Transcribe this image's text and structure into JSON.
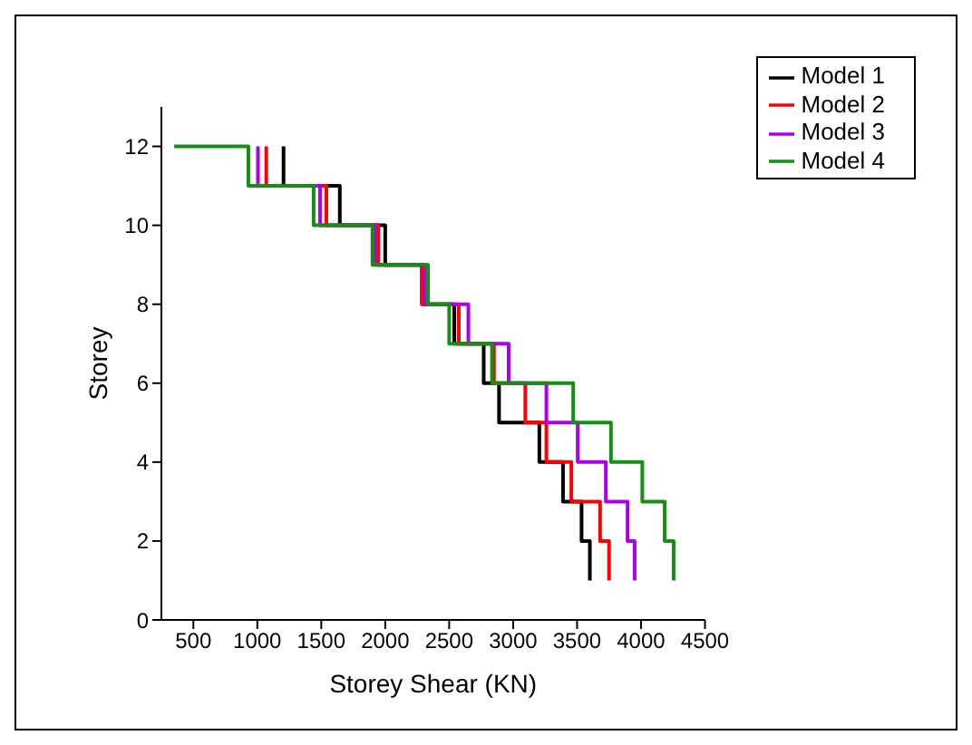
{
  "chart_data": {
    "type": "line",
    "xlabel": "Storey Shear (KN)",
    "ylabel": "Storey",
    "xlim": [
      250,
      4500
    ],
    "xticks": [
      500,
      1000,
      1500,
      2000,
      2500,
      3000,
      3500,
      4000,
      4500
    ],
    "ylim": [
      0,
      13
    ],
    "yticks": [
      0,
      2,
      4,
      6,
      8,
      10,
      12
    ],
    "grid": false,
    "legend": "top right",
    "marker": "none",
    "line_style": "solid",
    "series": [
      {
        "name": "Model 1",
        "color": "#000000",
        "x": [
          1205,
          1205,
          1645,
          1645,
          2000,
          2000,
          2300,
          2300,
          2540,
          2540,
          2770,
          2770,
          2890,
          2890,
          3205,
          3205,
          3390,
          3390,
          3535,
          3535,
          3600,
          3600
        ],
        "values": [
          12,
          11,
          11,
          10,
          10,
          9,
          9,
          8,
          8,
          7,
          7,
          6,
          6,
          5,
          5,
          4,
          4,
          3,
          3,
          2,
          2,
          1
        ]
      },
      {
        "name": "Model 2",
        "color": "#ff0000",
        "x": [
          1070,
          1070,
          1540,
          1540,
          1945,
          1945,
          2285,
          2285,
          2575,
          2575,
          2850,
          2850,
          3095,
          3095,
          3260,
          3260,
          3455,
          3455,
          3680,
          3680,
          3750,
          3750
        ],
        "values": [
          12,
          11,
          11,
          10,
          10,
          9,
          9,
          8,
          8,
          7,
          7,
          6,
          6,
          5,
          5,
          4,
          4,
          3,
          3,
          2,
          2,
          1
        ]
      },
      {
        "name": "Model 3",
        "color": "#aa00ee",
        "x": [
          1005,
          1005,
          1490,
          1490,
          1920,
          1920,
          2310,
          2310,
          2650,
          2650,
          2965,
          2965,
          3260,
          3260,
          3505,
          3505,
          3725,
          3725,
          3895,
          3895,
          3950,
          3950
        ],
        "values": [
          12,
          11,
          11,
          10,
          10,
          9,
          9,
          8,
          8,
          7,
          7,
          6,
          6,
          5,
          5,
          4,
          4,
          3,
          3,
          2,
          2,
          1
        ]
      },
      {
        "name": "Model 4",
        "color": "#129012",
        "x": [
          350,
          930,
          930,
          1440,
          1440,
          1900,
          1900,
          2335,
          2335,
          2500,
          2500,
          2835,
          2835,
          3470,
          3470,
          3765,
          3765,
          4010,
          4010,
          4185,
          4185,
          4255,
          4255
        ],
        "values": [
          12,
          12,
          11,
          11,
          10,
          10,
          9,
          9,
          8,
          8,
          7,
          7,
          6,
          6,
          5,
          5,
          4,
          4,
          3,
          3,
          2,
          2,
          1
        ]
      }
    ]
  }
}
